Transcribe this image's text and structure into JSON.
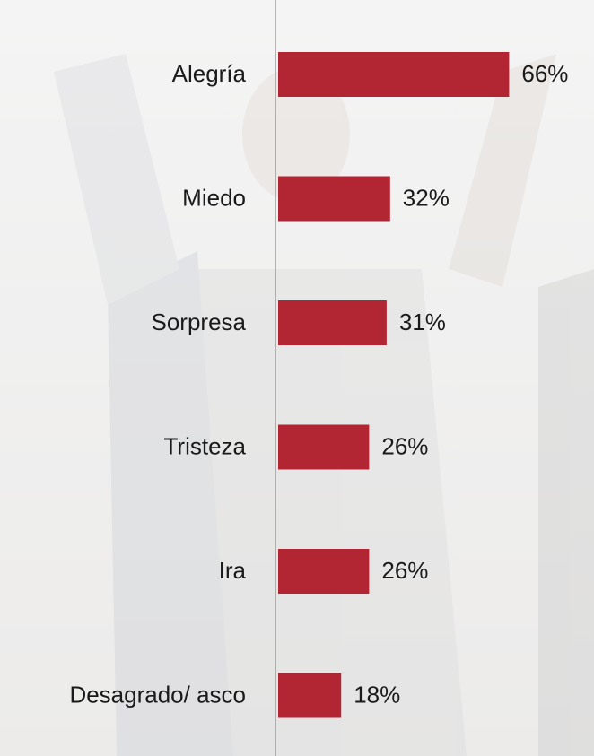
{
  "chart_data": {
    "type": "bar",
    "orientation": "horizontal",
    "categories": [
      "Alegría",
      "Miedo",
      "Sorpresa",
      "Tristeza",
      "Ira",
      "Desagrado/ asco"
    ],
    "values": [
      66,
      32,
      31,
      26,
      26,
      18
    ],
    "value_labels": [
      "66%",
      "32%",
      "31%",
      "26%",
      "26%",
      "18%"
    ],
    "color": "#b22533"
  }
}
